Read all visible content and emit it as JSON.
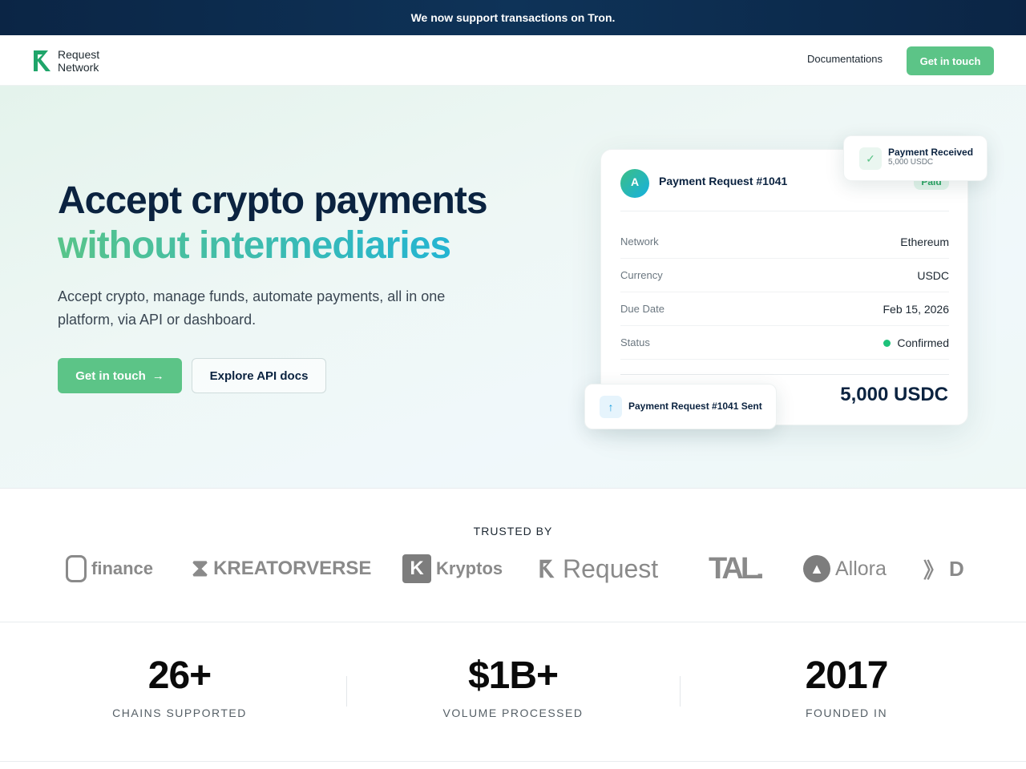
{
  "banner": {
    "text": "We now support transactions on Tron."
  },
  "nav": {
    "logo_line1": "Request",
    "logo_line2": "Network",
    "docs": "Documentations",
    "cta": "Get in touch"
  },
  "hero": {
    "title_line1": "Accept crypto payments",
    "title_line2": "without intermediaries",
    "subtitle": "Accept crypto, manage funds, automate payments, all in one platform, via API or dashboard.",
    "cta_primary": "Get in touch",
    "cta_secondary": "Explore API docs"
  },
  "card": {
    "avatar": "A",
    "title": "Payment Request #1041",
    "badge": "Paid",
    "rows": [
      {
        "label": "Network",
        "value": "Ethereum"
      },
      {
        "label": "Currency",
        "value": "USDC"
      },
      {
        "label": "Due Date",
        "value": "Feb 15, 2026"
      },
      {
        "label": "Status",
        "value": "Confirmed"
      }
    ],
    "total": "5,000 USDC"
  },
  "toast_received": {
    "title": "Payment Received",
    "amount": "5,000 USDC"
  },
  "toast_sent": {
    "title": "Payment Request #1041 Sent"
  },
  "trusted": {
    "label": "TRUSTED BY",
    "logos": [
      "finance",
      "KREATORVERSE",
      "Kryptos",
      "Request",
      "TAL.",
      "Allora",
      "D"
    ]
  },
  "stats": [
    {
      "value": "26+",
      "label": "CHAINS SUPPORTED"
    },
    {
      "value": "$1B+",
      "label": "VOLUME PROCESSED"
    },
    {
      "value": "2017",
      "label": "FOUNDED IN"
    }
  ],
  "colors": {
    "accent": "#5cc487",
    "navy": "#0b2545",
    "confirmed": "#1ec27a"
  }
}
